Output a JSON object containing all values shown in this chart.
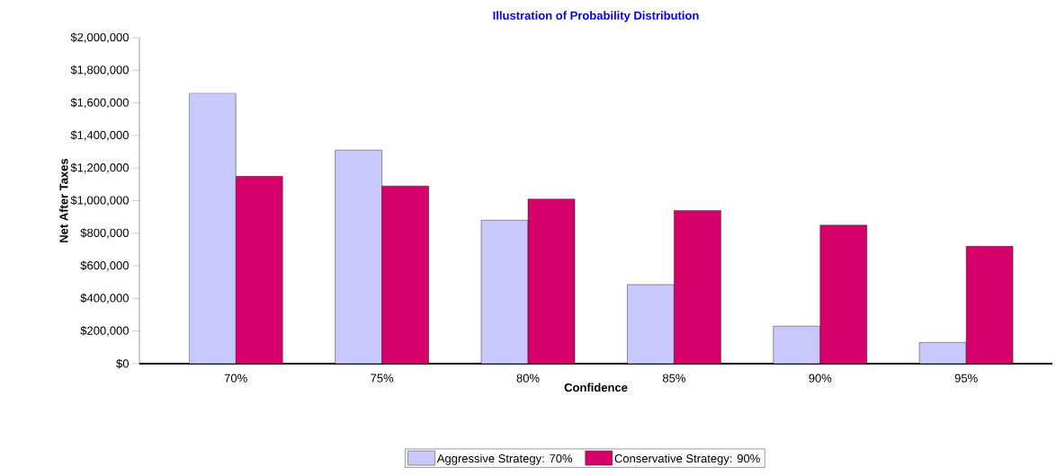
{
  "chart_data": {
    "type": "bar",
    "title": "Illustration of Probability Distribution",
    "xlabel": "Confidence",
    "ylabel": "Net After Taxes",
    "categories": [
      "70%",
      "75%",
      "80%",
      "85%",
      "90%",
      "95%"
    ],
    "series": [
      {
        "name": "Aggressive Strategy: 70%",
        "color": "#c8c8fa",
        "values": [
          1660000,
          1310000,
          880000,
          485000,
          230000,
          130000
        ]
      },
      {
        "name": "Conservative Strategy: 90%",
        "color": "#d6006a",
        "values": [
          1150000,
          1090000,
          1010000,
          940000,
          850000,
          720000
        ]
      }
    ],
    "ylim": [
      0,
      2000000
    ],
    "yticks": [
      {
        "value": 0,
        "label": "$0"
      },
      {
        "value": 200000,
        "label": "$200,000"
      },
      {
        "value": 400000,
        "label": "$400,000"
      },
      {
        "value": 600000,
        "label": "$600,000"
      },
      {
        "value": 800000,
        "label": "$800,000"
      },
      {
        "value": 1000000,
        "label": "$1,000,000"
      },
      {
        "value": 1200000,
        "label": "$1,200,000"
      },
      {
        "value": 1400000,
        "label": "$1,400,000"
      },
      {
        "value": 1600000,
        "label": "$1,600,000"
      },
      {
        "value": 1800000,
        "label": "$1,800,000"
      },
      {
        "value": 2000000,
        "label": "$2,000,000"
      }
    ],
    "grid": false,
    "legend": "bottom"
  }
}
